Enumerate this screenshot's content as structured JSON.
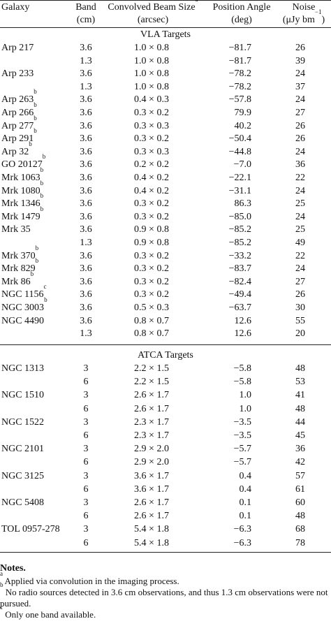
{
  "headers": {
    "galaxy": "Galaxy",
    "band_l1": "Band",
    "band_l2": "(cm)",
    "beam_l1": "Convolved Beam Size",
    "beam_sup": "a",
    "beam_l2": "(arcsec)",
    "pa_l1": "Position Angle",
    "pa_l2": "(deg)",
    "noise_l1": "Noise",
    "noise_l2_pre": "(μJy bm",
    "noise_l2_sup": "−1",
    "noise_l2_post": ")"
  },
  "vla": {
    "title": "VLA Targets",
    "rows": [
      {
        "galaxy": "Arp 217",
        "sup": "",
        "band": "3.6",
        "beam": "1.0 × 0.8",
        "pa": "−81.7",
        "noise": "26"
      },
      {
        "galaxy": "",
        "sup": "",
        "band": "1.3",
        "beam": "1.0 × 0.8",
        "pa": "−81.7",
        "noise": "39"
      },
      {
        "galaxy": "Arp 233",
        "sup": "",
        "band": "3.6",
        "beam": "1.0 × 0.8",
        "pa": "−78.2",
        "noise": "24"
      },
      {
        "galaxy": "",
        "sup": "",
        "band": "1.3",
        "beam": "1.0 × 0.8",
        "pa": "−78.2",
        "noise": "37"
      },
      {
        "galaxy": "Arp 263",
        "sup": "b",
        "band": "3.6",
        "beam": "0.4 × 0.3",
        "pa": "−57.8",
        "noise": "24"
      },
      {
        "galaxy": "Arp 266",
        "sup": "b",
        "band": "3.6",
        "beam": "0.3 × 0.2",
        "pa": "79.9",
        "noise": "27"
      },
      {
        "galaxy": "Arp 277",
        "sup": "b",
        "band": "3.6",
        "beam": "0.3 × 0.3",
        "pa": "40.2",
        "noise": "26"
      },
      {
        "galaxy": "Arp 291",
        "sup": "b",
        "band": "3.6",
        "beam": "0.3 × 0.2",
        "pa": "−50.4",
        "noise": "26"
      },
      {
        "galaxy": "Arp 32",
        "sup": "b",
        "band": "3.6",
        "beam": "0.3 × 0.3",
        "pa": "−44.8",
        "noise": "24"
      },
      {
        "galaxy": "GO 20127",
        "sup": "b",
        "band": "3.6",
        "beam": "0.2 × 0.2",
        "pa": "−7.0",
        "noise": "36"
      },
      {
        "galaxy": "Mrk 1063",
        "sup": "b",
        "band": "3.6",
        "beam": "0.4 × 0.2",
        "pa": "−22.1",
        "noise": "22"
      },
      {
        "galaxy": "Mrk 1080",
        "sup": "b",
        "band": "3.6",
        "beam": "0.4 × 0.2",
        "pa": "−31.1",
        "noise": "24"
      },
      {
        "galaxy": "Mrk 1346",
        "sup": "b",
        "band": "3.6",
        "beam": "0.3 × 0.2",
        "pa": "86.3",
        "noise": "25"
      },
      {
        "galaxy": "Mrk 1479",
        "sup": "b",
        "band": "3.6",
        "beam": "0.3 × 0.2",
        "pa": "−85.0",
        "noise": "24"
      },
      {
        "galaxy": "Mrk 35",
        "sup": "",
        "band": "3.6",
        "beam": "0.9 × 0.8",
        "pa": "−85.2",
        "noise": "25"
      },
      {
        "galaxy": "",
        "sup": "",
        "band": "1.3",
        "beam": "0.9 × 0.8",
        "pa": "−85.2",
        "noise": "49"
      },
      {
        "galaxy": "Mrk 370",
        "sup": "b",
        "band": "3.6",
        "beam": "0.3 × 0.2",
        "pa": "−33.2",
        "noise": "22"
      },
      {
        "galaxy": "Mrk 829",
        "sup": "b",
        "band": "3.6",
        "beam": "0.3 × 0.2",
        "pa": "−83.7",
        "noise": "24"
      },
      {
        "galaxy": "Mrk 86",
        "sup": "b",
        "band": "3.6",
        "beam": "0.3 × 0.2",
        "pa": "−82.4",
        "noise": "27"
      },
      {
        "galaxy": "NGC 1156",
        "sup": "c",
        "band": "3.6",
        "beam": "0.3 × 0.2",
        "pa": "−49.4",
        "noise": "26"
      },
      {
        "galaxy": "NGC 3003",
        "sup": "b",
        "band": "3.6",
        "beam": "0.5 × 0.3",
        "pa": "−63.7",
        "noise": "30"
      },
      {
        "galaxy": "NGC 4490",
        "sup": "",
        "band": "3.6",
        "beam": "0.8 × 0.7",
        "pa": "12.6",
        "noise": "55"
      },
      {
        "galaxy": "",
        "sup": "",
        "band": "1.3",
        "beam": "0.8 × 0.7",
        "pa": "12.6",
        "noise": "20"
      }
    ]
  },
  "atca": {
    "title": "ATCA Targets",
    "rows": [
      {
        "galaxy": "NGC 1313",
        "sup": "",
        "band": "3",
        "beam": "2.2 × 1.5",
        "pa": "−5.8",
        "noise": "48"
      },
      {
        "galaxy": "",
        "sup": "",
        "band": "6",
        "beam": "2.2 × 1.5",
        "pa": "−5.8",
        "noise": "53"
      },
      {
        "galaxy": "NGC 1510",
        "sup": "",
        "band": "3",
        "beam": "2.6 × 1.7",
        "pa": "1.0",
        "noise": "41"
      },
      {
        "galaxy": "",
        "sup": "",
        "band": "6",
        "beam": "2.6 × 1.7",
        "pa": "1.0",
        "noise": "48"
      },
      {
        "galaxy": "NGC 1522",
        "sup": "",
        "band": "3",
        "beam": "2.3 × 1.7",
        "pa": "−3.5",
        "noise": "44"
      },
      {
        "galaxy": "",
        "sup": "",
        "band": "6",
        "beam": "2.3 × 1.7",
        "pa": "−3.5",
        "noise": "45"
      },
      {
        "galaxy": "NGC 2101",
        "sup": "",
        "band": "3",
        "beam": "2.9 × 2.0",
        "pa": "−5.7",
        "noise": "36"
      },
      {
        "galaxy": "",
        "sup": "",
        "band": "6",
        "beam": "2.9 × 2.0",
        "pa": "−5.7",
        "noise": "42"
      },
      {
        "galaxy": "NGC 3125",
        "sup": "",
        "band": "3",
        "beam": "3.6 × 1.7",
        "pa": "0.4",
        "noise": "57"
      },
      {
        "galaxy": "",
        "sup": "",
        "band": "6",
        "beam": "3.6 × 1.7",
        "pa": "0.4",
        "noise": "61"
      },
      {
        "galaxy": "NGC 5408",
        "sup": "",
        "band": "3",
        "beam": "2.6 × 1.7",
        "pa": "0.1",
        "noise": "60"
      },
      {
        "galaxy": "",
        "sup": "",
        "band": "6",
        "beam": "2.6 × 1.7",
        "pa": "0.1",
        "noise": "48"
      },
      {
        "galaxy": "TOL 0957-278",
        "sup": "",
        "band": "3",
        "beam": "5.4 × 1.8",
        "pa": "−6.3",
        "noise": "68"
      },
      {
        "galaxy": "",
        "sup": "",
        "band": "6",
        "beam": "5.4 × 1.8",
        "pa": "−6.3",
        "noise": "78"
      }
    ]
  },
  "notes": {
    "title": "Notes.",
    "a": {
      "mark": "a",
      "text": " Applied via convolution in the imaging process."
    },
    "b": {
      "mark": "b",
      "text": " No radio sources detected in 3.6 cm observations, and thus 1.3 cm observations were not pursued."
    },
    "c": {
      "mark": "c",
      "text": " Only one band available."
    }
  }
}
